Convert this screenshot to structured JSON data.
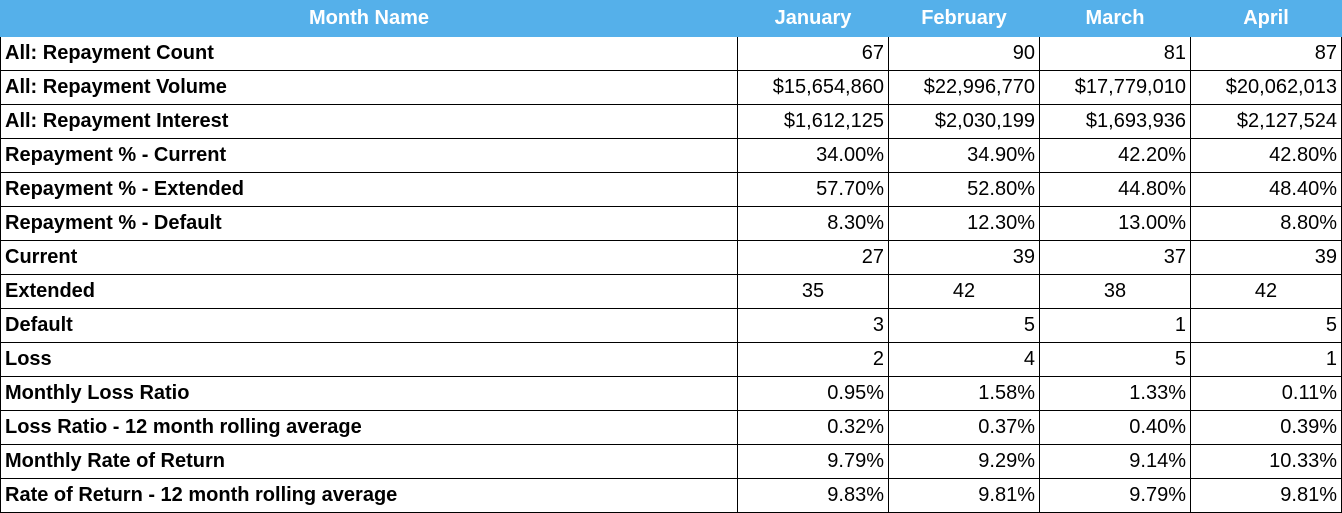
{
  "table": {
    "header": [
      "Month Name",
      "January",
      "February",
      "March",
      "April"
    ],
    "rows": [
      [
        "All: Repayment Count",
        "67",
        "90",
        "81",
        "87"
      ],
      [
        "All: Repayment Volume",
        "$15,654,860",
        "$22,996,770",
        "$17,779,010",
        "$20,062,013"
      ],
      [
        "All: Repayment Interest",
        "$1,612,125",
        "$2,030,199",
        "$1,693,936",
        "$2,127,524"
      ],
      [
        "Repayment % - Current",
        "34.00%",
        "34.90%",
        "42.20%",
        "42.80%"
      ],
      [
        "Repayment % - Extended",
        "57.70%",
        "52.80%",
        "44.80%",
        "48.40%"
      ],
      [
        "Repayment % - Default",
        "8.30%",
        "12.30%",
        "13.00%",
        "8.80%"
      ],
      [
        "Current",
        "27",
        "39",
        "37",
        "39"
      ],
      [
        "Extended",
        "35",
        "42",
        "38",
        "42"
      ],
      [
        "Default",
        "3",
        "5",
        "1",
        "5"
      ],
      [
        "Loss",
        "2",
        "4",
        "5",
        "1"
      ],
      [
        "Monthly Loss Ratio",
        "0.95%",
        "1.58%",
        "1.33%",
        "0.11%"
      ],
      [
        "Loss Ratio - 12 month rolling average",
        "0.32%",
        "0.37%",
        "0.40%",
        "0.39%"
      ],
      [
        "Monthly Rate of Return",
        "9.79%",
        "9.29%",
        "9.14%",
        "10.33%"
      ],
      [
        "Rate of Return - 12 month rolling average",
        "9.83%",
        "9.81%",
        "9.79%",
        "9.81%"
      ]
    ]
  }
}
